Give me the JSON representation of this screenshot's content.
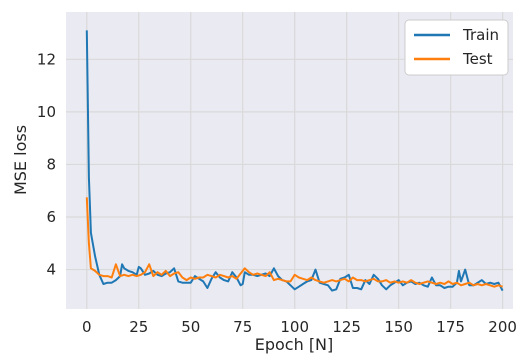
{
  "chart_data": {
    "type": "line",
    "xlabel": "Epoch [N]",
    "ylabel": "MSE loss",
    "xlim": [
      -10,
      205
    ],
    "ylim": [
      2.5,
      13.8
    ],
    "xticks": [
      0,
      25,
      50,
      75,
      100,
      125,
      150,
      175,
      200
    ],
    "yticks": [
      4,
      6,
      8,
      10,
      12
    ],
    "grid": true,
    "background": "#eaeaf2",
    "legend_position": "top-right",
    "series": [
      {
        "name": "Train",
        "color": "#1f77b4",
        "x": [
          0,
          1,
          2,
          4,
          6,
          8,
          10,
          12,
          14,
          16,
          17,
          18,
          20,
          22,
          24,
          25,
          26,
          28,
          30,
          32,
          34,
          36,
          38,
          40,
          42,
          44,
          46,
          48,
          50,
          52,
          54,
          56,
          58,
          60,
          62,
          64,
          66,
          68,
          70,
          72,
          74,
          75,
          76,
          78,
          80,
          82,
          84,
          86,
          88,
          90,
          92,
          94,
          96,
          98,
          100,
          102,
          104,
          106,
          108,
          110,
          112,
          114,
          116,
          118,
          120,
          122,
          124,
          126,
          128,
          130,
          132,
          134,
          136,
          138,
          140,
          142,
          144,
          146,
          148,
          150,
          152,
          154,
          156,
          158,
          160,
          162,
          164,
          166,
          168,
          170,
          172,
          174,
          176,
          178,
          179,
          180,
          182,
          184,
          186,
          188,
          190,
          192,
          194,
          196,
          198,
          200
        ],
        "y": [
          13.1,
          7.5,
          5.4,
          4.5,
          3.8,
          3.45,
          3.5,
          3.5,
          3.6,
          3.75,
          4.2,
          4.05,
          3.95,
          3.9,
          3.8,
          4.1,
          4.05,
          3.8,
          3.85,
          3.95,
          3.8,
          3.75,
          3.85,
          3.9,
          4.05,
          3.55,
          3.5,
          3.5,
          3.5,
          3.75,
          3.65,
          3.55,
          3.3,
          3.65,
          3.9,
          3.7,
          3.6,
          3.55,
          3.9,
          3.7,
          3.4,
          3.45,
          3.9,
          3.8,
          3.8,
          3.75,
          3.8,
          3.85,
          3.75,
          4.05,
          3.75,
          3.6,
          3.55,
          3.4,
          3.25,
          3.35,
          3.45,
          3.55,
          3.6,
          4.0,
          3.5,
          3.45,
          3.4,
          3.2,
          3.25,
          3.65,
          3.7,
          3.8,
          3.3,
          3.3,
          3.25,
          3.6,
          3.45,
          3.8,
          3.65,
          3.4,
          3.25,
          3.4,
          3.5,
          3.6,
          3.4,
          3.5,
          3.55,
          3.45,
          3.5,
          3.4,
          3.35,
          3.7,
          3.4,
          3.4,
          3.3,
          3.35,
          3.35,
          3.5,
          3.95,
          3.55,
          4.0,
          3.4,
          3.4,
          3.5,
          3.6,
          3.45,
          3.5,
          3.45,
          3.5,
          3.2
        ]
      },
      {
        "name": "Test",
        "color": "#ff7f0e",
        "x": [
          0,
          1,
          2,
          4,
          6,
          8,
          10,
          12,
          14,
          16,
          18,
          20,
          22,
          24,
          26,
          28,
          30,
          32,
          34,
          36,
          38,
          40,
          42,
          44,
          46,
          48,
          50,
          52,
          54,
          56,
          58,
          60,
          62,
          64,
          66,
          68,
          70,
          72,
          74,
          76,
          78,
          80,
          82,
          84,
          86,
          88,
          90,
          92,
          94,
          96,
          98,
          100,
          102,
          104,
          106,
          108,
          110,
          112,
          114,
          116,
          118,
          120,
          122,
          124,
          126,
          128,
          130,
          132,
          134,
          136,
          138,
          140,
          142,
          144,
          146,
          148,
          150,
          152,
          154,
          156,
          158,
          160,
          162,
          164,
          166,
          168,
          170,
          172,
          174,
          176,
          178,
          180,
          182,
          184,
          186,
          188,
          190,
          192,
          194,
          196,
          198,
          200
        ],
        "y": [
          6.75,
          5.0,
          4.05,
          3.95,
          3.8,
          3.75,
          3.75,
          3.7,
          4.2,
          3.75,
          3.8,
          3.75,
          3.8,
          3.75,
          3.8,
          3.9,
          4.2,
          3.75,
          3.9,
          3.8,
          3.95,
          3.75,
          3.85,
          3.9,
          3.7,
          3.6,
          3.7,
          3.65,
          3.7,
          3.7,
          3.8,
          3.75,
          3.7,
          3.8,
          3.75,
          3.7,
          3.75,
          3.65,
          3.85,
          4.05,
          3.9,
          3.8,
          3.85,
          3.8,
          3.75,
          3.9,
          3.6,
          3.65,
          3.6,
          3.55,
          3.55,
          3.8,
          3.7,
          3.65,
          3.6,
          3.7,
          3.6,
          3.55,
          3.5,
          3.55,
          3.6,
          3.55,
          3.6,
          3.65,
          3.55,
          3.7,
          3.6,
          3.6,
          3.55,
          3.6,
          3.65,
          3.55,
          3.55,
          3.6,
          3.5,
          3.55,
          3.5,
          3.55,
          3.5,
          3.6,
          3.5,
          3.45,
          3.5,
          3.55,
          3.5,
          3.45,
          3.5,
          3.45,
          3.55,
          3.45,
          3.5,
          3.4,
          3.45,
          3.5,
          3.4,
          3.45,
          3.4,
          3.45,
          3.4,
          3.35,
          3.4,
          3.35
        ]
      }
    ]
  }
}
